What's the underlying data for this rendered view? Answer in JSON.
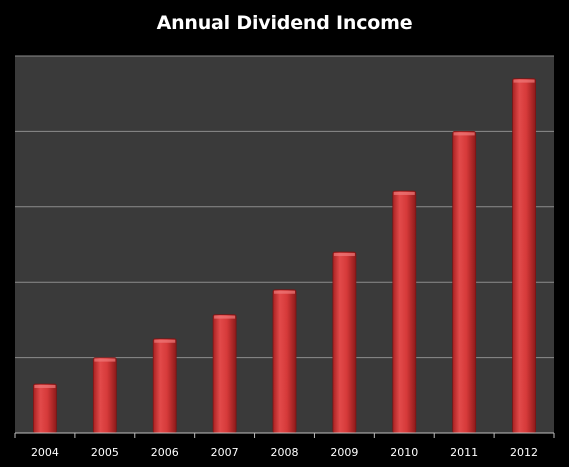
{
  "chart_data": {
    "type": "bar",
    "title": "Annual Dividend Income",
    "categories": [
      "2004",
      "2005",
      "2006",
      "2007",
      "2008",
      "2009",
      "2010",
      "2011",
      "2012"
    ],
    "values": [
      0.65,
      1.0,
      1.25,
      1.57,
      1.9,
      2.4,
      3.21,
      4.0,
      4.7
    ],
    "ylim": [
      0,
      5
    ],
    "grid": true,
    "ylabel": "",
    "xlabel": "",
    "bar_color": "#d63a3a",
    "plot_background": "#3a3a3a",
    "gridline_color": "#8c8c8c"
  }
}
